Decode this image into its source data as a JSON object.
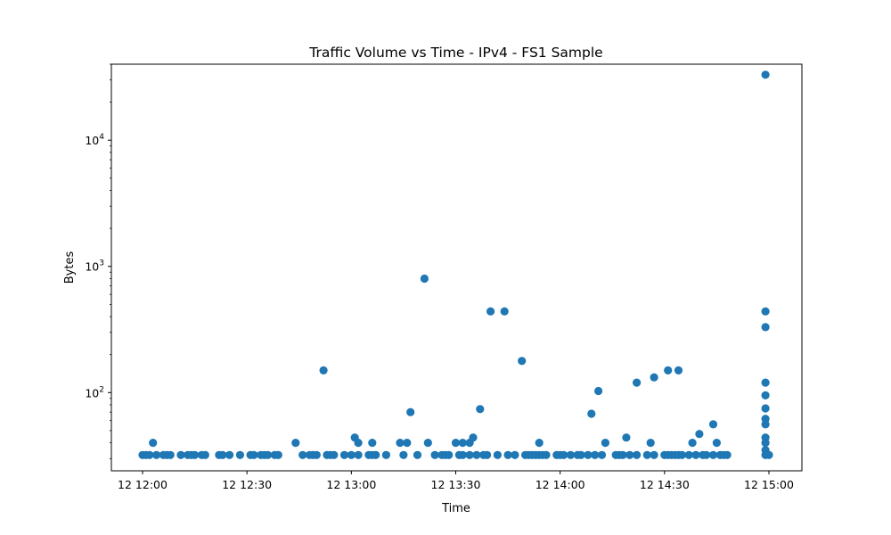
{
  "chart_data": {
    "type": "scatter",
    "title": "Traffic Volume vs Time - IPv4 - FS1 Sample",
    "xlabel": "Time",
    "ylabel": "Bytes",
    "yscale": "log",
    "xlim": [
      "12 12:00",
      "12 15:00"
    ],
    "ylim": [
      24,
      40000
    ],
    "grid": false,
    "marker_color": "#1f77b4",
    "x_ticks": [
      {
        "value": "12 12:00",
        "label": "12 12:00"
      },
      {
        "value": "12 12:30",
        "label": "12 12:30"
      },
      {
        "value": "12 13:00",
        "label": "12 13:00"
      },
      {
        "value": "12 13:30",
        "label": "12 13:30"
      },
      {
        "value": "12 14:00",
        "label": "12 14:00"
      },
      {
        "value": "12 14:30",
        "label": "12 14:30"
      },
      {
        "value": "12 15:00",
        "label": "12 15:00"
      }
    ],
    "y_ticks": [
      {
        "value": 100,
        "base": "10",
        "exp": "2"
      },
      {
        "value": 1000,
        "base": "10",
        "exp": "3"
      },
      {
        "value": 10000,
        "base": "10",
        "exp": "4"
      }
    ],
    "points": [
      [
        "12 12:00",
        32
      ],
      [
        "12 12:01",
        32
      ],
      [
        "12 12:02",
        32
      ],
      [
        "12 12:03",
        40
      ],
      [
        "12 12:04",
        32
      ],
      [
        "12 12:06",
        32
      ],
      [
        "12 12:07",
        32
      ],
      [
        "12 12:08",
        32
      ],
      [
        "12 12:11",
        32
      ],
      [
        "12 12:13",
        32
      ],
      [
        "12 12:14",
        32
      ],
      [
        "12 12:15",
        32
      ],
      [
        "12 12:17",
        32
      ],
      [
        "12 12:18",
        32
      ],
      [
        "12 12:22",
        32
      ],
      [
        "12 12:23",
        32
      ],
      [
        "12 12:25",
        32
      ],
      [
        "12 12:28",
        32
      ],
      [
        "12 12:31",
        32
      ],
      [
        "12 12:32",
        32
      ],
      [
        "12 12:34",
        32
      ],
      [
        "12 12:35",
        32
      ],
      [
        "12 12:36",
        32
      ],
      [
        "12 12:38",
        32
      ],
      [
        "12 12:39",
        32
      ],
      [
        "12 12:44",
        40
      ],
      [
        "12 12:46",
        32
      ],
      [
        "12 12:48",
        32
      ],
      [
        "12 12:49",
        32
      ],
      [
        "12 12:50",
        32
      ],
      [
        "12 12:52",
        150
      ],
      [
        "12 12:53",
        32
      ],
      [
        "12 12:54",
        32
      ],
      [
        "12 12:55",
        32
      ],
      [
        "12 12:58",
        32
      ],
      [
        "12 13:00",
        32
      ],
      [
        "12 13:01",
        44
      ],
      [
        "12 13:02",
        32
      ],
      [
        "12 13:02",
        40
      ],
      [
        "12 13:05",
        32
      ],
      [
        "12 13:06",
        32
      ],
      [
        "12 13:06",
        40
      ],
      [
        "12 13:07",
        32
      ],
      [
        "12 13:10",
        32
      ],
      [
        "12 13:14",
        40
      ],
      [
        "12 13:15",
        32
      ],
      [
        "12 13:16",
        40
      ],
      [
        "12 13:17",
        70
      ],
      [
        "12 13:19",
        32
      ],
      [
        "12 13:21",
        800
      ],
      [
        "12 13:22",
        40
      ],
      [
        "12 13:24",
        32
      ],
      [
        "12 13:26",
        32
      ],
      [
        "12 13:27",
        32
      ],
      [
        "12 13:28",
        32
      ],
      [
        "12 13:30",
        40
      ],
      [
        "12 13:31",
        32
      ],
      [
        "12 13:32",
        40
      ],
      [
        "12 13:32",
        32
      ],
      [
        "12 13:34",
        40
      ],
      [
        "12 13:34",
        32
      ],
      [
        "12 13:35",
        44
      ],
      [
        "12 13:36",
        32
      ],
      [
        "12 13:37",
        74
      ],
      [
        "12 13:38",
        32
      ],
      [
        "12 13:39",
        32
      ],
      [
        "12 13:40",
        440
      ],
      [
        "12 13:42",
        32
      ],
      [
        "12 13:44",
        440
      ],
      [
        "12 13:45",
        32
      ],
      [
        "12 13:47",
        32
      ],
      [
        "12 13:49",
        178
      ],
      [
        "12 13:50",
        32
      ],
      [
        "12 13:51",
        32
      ],
      [
        "12 13:52",
        32
      ],
      [
        "12 13:53",
        32
      ],
      [
        "12 13:54",
        32
      ],
      [
        "12 13:54",
        40
      ],
      [
        "12 13:55",
        32
      ],
      [
        "12 13:56",
        32
      ],
      [
        "12 13:59",
        32
      ],
      [
        "12 14:00",
        32
      ],
      [
        "12 14:01",
        32
      ],
      [
        "12 14:03",
        32
      ],
      [
        "12 14:05",
        32
      ],
      [
        "12 14:06",
        32
      ],
      [
        "12 14:08",
        32
      ],
      [
        "12 14:09",
        68
      ],
      [
        "12 14:10",
        32
      ],
      [
        "12 14:11",
        103
      ],
      [
        "12 14:12",
        32
      ],
      [
        "12 14:13",
        40
      ],
      [
        "12 14:16",
        32
      ],
      [
        "12 14:17",
        32
      ],
      [
        "12 14:18",
        32
      ],
      [
        "12 14:19",
        44
      ],
      [
        "12 14:20",
        32
      ],
      [
        "12 14:22",
        32
      ],
      [
        "12 14:22",
        120
      ],
      [
        "12 14:25",
        32
      ],
      [
        "12 14:26",
        40
      ],
      [
        "12 14:27",
        32
      ],
      [
        "12 14:27",
        132
      ],
      [
        "12 14:30",
        32
      ],
      [
        "12 14:31",
        32
      ],
      [
        "12 14:31",
        150
      ],
      [
        "12 14:32",
        32
      ],
      [
        "12 14:33",
        32
      ],
      [
        "12 14:34",
        150
      ],
      [
        "12 14:34",
        32
      ],
      [
        "12 14:35",
        32
      ],
      [
        "12 14:37",
        32
      ],
      [
        "12 14:38",
        40
      ],
      [
        "12 14:39",
        32
      ],
      [
        "12 14:40",
        47
      ],
      [
        "12 14:41",
        32
      ],
      [
        "12 14:42",
        32
      ],
      [
        "12 14:44",
        32
      ],
      [
        "12 14:44",
        56
      ],
      [
        "12 14:45",
        40
      ],
      [
        "12 14:46",
        32
      ],
      [
        "12 14:47",
        32
      ],
      [
        "12 14:48",
        32
      ],
      [
        "12 14:59",
        32
      ],
      [
        "12 14:59",
        33000
      ],
      [
        "12 14:59",
        440
      ],
      [
        "12 14:59",
        330
      ],
      [
        "12 14:59",
        120
      ],
      [
        "12 14:59",
        95
      ],
      [
        "12 14:59",
        75
      ],
      [
        "12 14:59",
        62
      ],
      [
        "12 14:59",
        56
      ],
      [
        "12 14:59",
        44
      ],
      [
        "12 14:59",
        40
      ],
      [
        "12 14:59",
        35
      ],
      [
        "12 15:00",
        32
      ]
    ]
  }
}
